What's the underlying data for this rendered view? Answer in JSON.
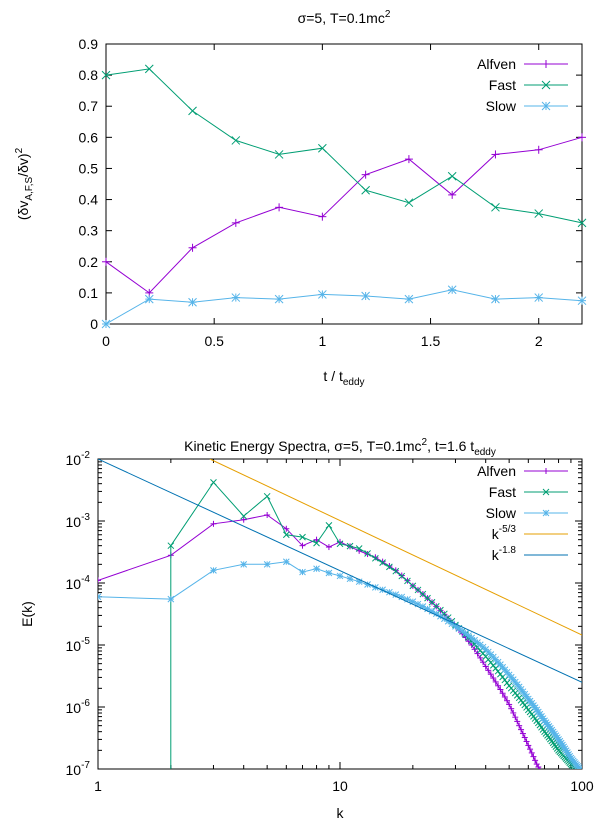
{
  "chart_data": [
    {
      "type": "line",
      "title": "σ=5, T=0.1mc",
      "title_sup": "2",
      "xlabel": "t / t",
      "xlabel_sub": "eddy",
      "ylabel": "(δv",
      "ylabel_sub": "A,F,S",
      "ylabel_tail": "/δv)",
      "ylabel_sup": "2",
      "xlim": [
        0,
        2.2
      ],
      "ylim": [
        0,
        0.9
      ],
      "x_ticks": [
        "0",
        "0.5",
        "1",
        "1.5",
        "2"
      ],
      "y_ticks": [
        "0",
        "0.1",
        "0.2",
        "0.3",
        "0.4",
        "0.5",
        "0.6",
        "0.7",
        "0.8",
        "0.9"
      ],
      "legend_position": "top-right",
      "x": [
        0,
        0.2,
        0.4,
        0.6,
        0.8,
        1.0,
        1.2,
        1.4,
        1.6,
        1.8,
        2.0,
        2.2
      ],
      "series": [
        {
          "name": "Alfven",
          "color": "#9400d3",
          "marker": "plus",
          "values": [
            0.2,
            0.1,
            0.245,
            0.325,
            0.375,
            0.345,
            0.48,
            0.53,
            0.415,
            0.545,
            0.56,
            0.6
          ]
        },
        {
          "name": "Fast",
          "color": "#009e73",
          "marker": "cross",
          "values": [
            0.8,
            0.82,
            0.685,
            0.59,
            0.545,
            0.565,
            0.43,
            0.39,
            0.475,
            0.375,
            0.355,
            0.325
          ]
        },
        {
          "name": "Slow",
          "color": "#56b4e9",
          "marker": "star",
          "values": [
            0.0,
            0.08,
            0.07,
            0.085,
            0.08,
            0.095,
            0.09,
            0.08,
            0.11,
            0.08,
            0.085,
            0.075
          ]
        }
      ]
    },
    {
      "type": "line",
      "title": "Kinetic Energy Spectra, σ=5, T=0.1mc",
      "title_sup": "2",
      "title_tail": ", t=1.6 t",
      "title_sub": "eddy",
      "xlabel": "k",
      "ylabel": "E(k)",
      "xscale": "log",
      "yscale": "log",
      "xlim": [
        1,
        100
      ],
      "ylim": [
        1e-07,
        0.01
      ],
      "x_ticks": [
        "1",
        "10",
        "100"
      ],
      "y_tick_base": "10",
      "y_tick_exponents": [
        "-7",
        "-6",
        "-5",
        "-4",
        "-3",
        "-2"
      ],
      "legend_position": "top-right",
      "series": [
        {
          "name": "Alfven",
          "color": "#9400d3",
          "marker": "plus",
          "points": [
            [
              1,
              0.00011
            ],
            [
              2,
              0.00028
            ],
            [
              3,
              0.0009
            ],
            [
              4,
              0.00105
            ],
            [
              5,
              0.00125
            ],
            [
              6,
              0.00075
            ],
            [
              7,
              0.0004
            ],
            [
              8,
              0.0005
            ],
            [
              9,
              0.00038
            ],
            [
              10,
              0.00046
            ],
            [
              12,
              0.00033
            ],
            [
              14,
              0.00026
            ],
            [
              17,
              0.00016
            ],
            [
              20,
              9e-05
            ],
            [
              25,
              4.2e-05
            ],
            [
              30,
              2e-05
            ],
            [
              35,
              1e-05
            ],
            [
              40,
              4.5e-06
            ],
            [
              45,
              2.2e-06
            ],
            [
              50,
              1.1e-06
            ],
            [
              55,
              5e-07
            ],
            [
              60,
              2.4e-07
            ],
            [
              65,
              1.2e-07
            ],
            [
              70,
              7e-08
            ]
          ]
        },
        {
          "name": "Fast",
          "color": "#009e73",
          "marker": "cross",
          "points": [
            [
              2,
              1e-09
            ],
            [
              2,
              0.0004
            ],
            [
              3,
              0.0042
            ],
            [
              4,
              0.0012
            ],
            [
              5,
              0.0025
            ],
            [
              6,
              0.0006
            ],
            [
              7,
              0.00055
            ],
            [
              8,
              0.00044
            ],
            [
              9,
              0.00085
            ],
            [
              10,
              0.00043
            ],
            [
              12,
              0.00036
            ],
            [
              14,
              0.00025
            ],
            [
              17,
              0.000155
            ],
            [
              20,
              9e-05
            ],
            [
              25,
              4.2e-05
            ],
            [
              30,
              2.1e-05
            ],
            [
              40,
              6.5e-06
            ],
            [
              50,
              2.2e-06
            ],
            [
              60,
              9e-07
            ],
            [
              70,
              4e-07
            ],
            [
              80,
              2e-07
            ],
            [
              90,
              1.2e-07
            ],
            [
              100,
              8e-08
            ]
          ]
        },
        {
          "name": "Slow",
          "color": "#56b4e9",
          "marker": "star",
          "points": [
            [
              1,
              6e-05
            ],
            [
              2,
              5.5e-05
            ],
            [
              3,
              0.00016
            ],
            [
              4,
              0.0002
            ],
            [
              5,
              0.0002
            ],
            [
              6,
              0.00022
            ],
            [
              7,
              0.00015
            ],
            [
              8,
              0.00017
            ],
            [
              9,
              0.000145
            ],
            [
              10,
              0.00013
            ],
            [
              12,
              0.000105
            ],
            [
              14,
              8.5e-05
            ],
            [
              17,
              6.5e-05
            ],
            [
              20,
              5e-05
            ],
            [
              25,
              3.2e-05
            ],
            [
              30,
              2e-05
            ],
            [
              40,
              8.5e-06
            ],
            [
              50,
              3.3e-06
            ],
            [
              60,
              1.35e-06
            ],
            [
              70,
              6e-07
            ],
            [
              80,
              3e-07
            ],
            [
              90,
              1.5e-07
            ],
            [
              100,
              9e-08
            ]
          ]
        },
        {
          "name": "k",
          "name_sup": "-5/3",
          "color": "#e69f00",
          "marker": "none",
          "points": [
            [
              2.9,
              0.01
            ],
            [
              100,
              1.45e-05
            ]
          ]
        },
        {
          "name": "k",
          "name_sup": "-1.8",
          "color": "#0072b2",
          "marker": "none",
          "points": [
            [
              1,
              0.01
            ],
            [
              100,
              2.5e-06
            ]
          ]
        }
      ]
    }
  ]
}
